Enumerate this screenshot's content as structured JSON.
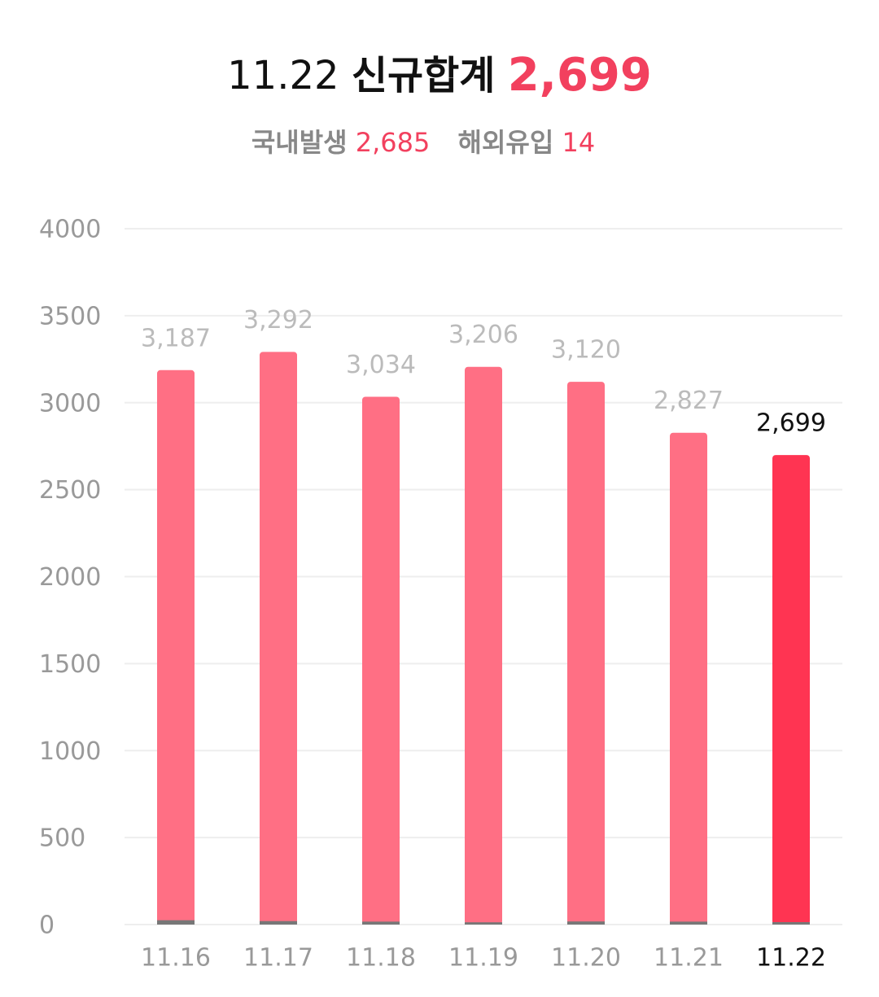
{
  "chart_data": {
    "type": "bar",
    "headline": {
      "date": "11.22",
      "label": "신규합계",
      "total": {
        "value": 2699,
        "label": "2,699"
      }
    },
    "breakdown": [
      {
        "label": "국내발생",
        "value": {
          "value": 2685,
          "label": "2,685"
        }
      },
      {
        "label": "해외유입",
        "value": 14
      }
    ],
    "categories": [
      "11.16",
      "11.17",
      "11.18",
      "11.19",
      "11.20",
      "11.21",
      "11.22"
    ],
    "values": [
      3187,
      3292,
      3034,
      3206,
      3120,
      2827,
      2699
    ],
    "value_labels": [
      "3,187",
      "3,292",
      "3,034",
      "3,206",
      "3,120",
      "2,827",
      "2,699"
    ],
    "overseas_values": [
      25,
      20,
      17,
      13,
      18,
      17,
      14
    ],
    "color": "#ff6f84",
    "highlight_color": "#ff3452",
    "overseas_color": "#777777",
    "ylim": [
      0,
      4000
    ],
    "yticks": [
      0,
      500,
      1000,
      1500,
      2000,
      2500,
      3000,
      3500,
      4000
    ],
    "grid": true
  }
}
